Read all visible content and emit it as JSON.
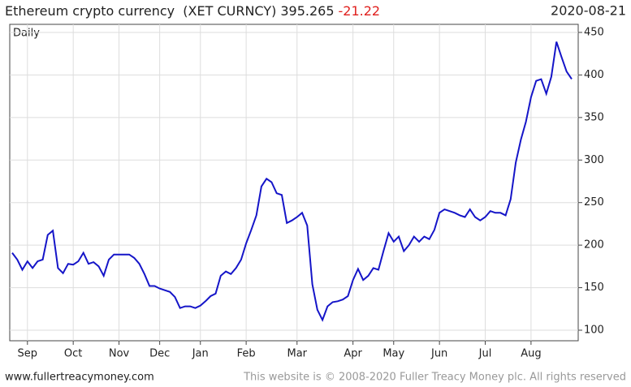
{
  "chart_data": {
    "type": "line",
    "title": "Ethereum crypto currency  (XET CURNCY)",
    "last_value": 395.265,
    "change": -21.22,
    "change_color": "#e0201e",
    "date": "2020-08-21",
    "series_label": "Daily",
    "footer_link": "www.fullertreacymoney.com",
    "footer_note": "This website is © 2008-2020 Fuller Treacy Money plc. All rights reserved",
    "color": "#1515c8",
    "grid": true,
    "categories": [
      null,
      null,
      null,
      "Sep",
      null,
      null,
      null,
      null,
      null,
      null,
      null,
      null,
      "Oct",
      null,
      null,
      null,
      null,
      null,
      null,
      null,
      null,
      "Nov",
      null,
      null,
      null,
      null,
      null,
      null,
      null,
      "Dec",
      null,
      null,
      null,
      null,
      null,
      null,
      null,
      "Jan",
      null,
      null,
      null,
      null,
      null,
      null,
      null,
      null,
      "Feb",
      null,
      null,
      null,
      null,
      null,
      null,
      null,
      null,
      null,
      "Mar",
      null,
      null,
      null,
      null,
      null,
      null,
      null,
      null,
      null,
      null,
      "Apr",
      null,
      null,
      null,
      null,
      null,
      null,
      null,
      "May",
      null,
      null,
      null,
      null,
      null,
      null,
      null,
      null,
      "Jun",
      null,
      null,
      null,
      null,
      null,
      null,
      null,
      null,
      "Jul",
      null,
      null,
      null,
      null,
      null,
      null,
      null,
      null,
      "Aug",
      null,
      null,
      null,
      null,
      null,
      null,
      null,
      null
    ],
    "values": [
      191,
      183,
      171,
      181,
      173,
      181,
      183,
      212,
      217,
      173,
      167,
      178,
      177,
      181,
      191,
      178,
      180,
      175,
      164,
      183,
      189,
      189,
      189,
      189,
      185,
      178,
      166,
      152,
      152,
      149,
      147,
      145,
      139,
      126,
      128,
      128,
      126,
      129,
      134,
      140,
      143,
      164,
      169,
      166,
      173,
      183,
      202,
      218,
      235,
      269,
      278,
      274,
      261,
      259,
      226,
      229,
      233,
      238,
      223,
      154,
      124,
      112,
      128,
      133,
      134,
      136,
      140,
      159,
      172,
      159,
      164,
      173,
      171,
      193,
      214,
      204,
      210,
      193,
      200,
      210,
      204,
      210,
      207,
      218,
      238,
      242,
      240,
      238,
      235,
      233,
      242,
      233,
      229,
      233,
      240,
      238,
      238,
      235,
      254,
      297,
      324,
      345,
      374,
      393,
      395,
      378,
      398,
      439,
      421,
      404,
      395.265
    ],
    "ylim": [
      87.6,
      459.5
    ],
    "yticks": [
      100,
      150,
      200,
      250,
      300,
      350,
      400,
      450
    ]
  }
}
